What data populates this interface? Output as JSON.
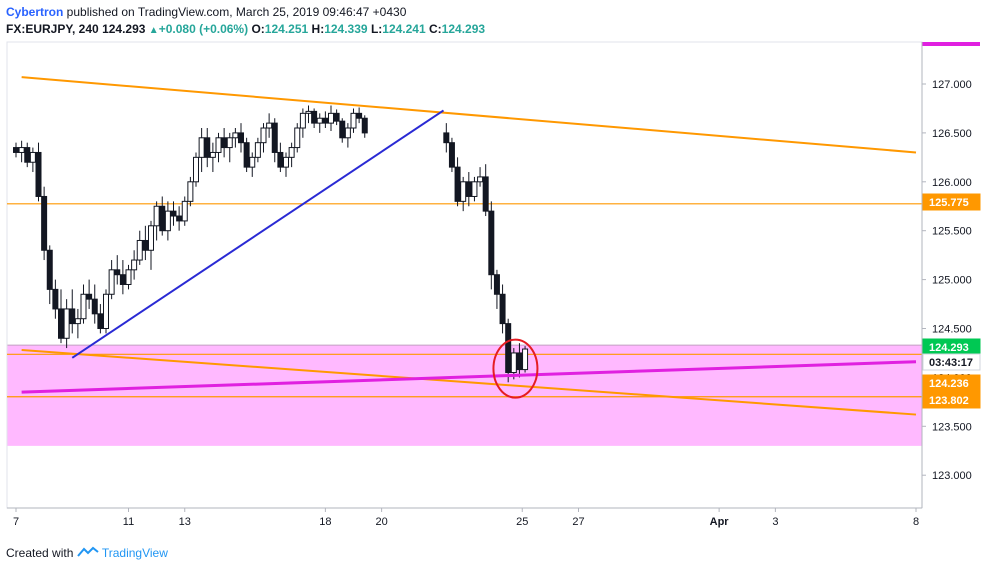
{
  "header": {
    "author": "Cybertron",
    "published_text": " published on TradingView.com, March 25, 2019 09:46:47 +0430"
  },
  "symbol_line": {
    "symbol": "FX:EURJPY, 240",
    "last": "124.293",
    "change": "+0.080 (+0.06%)",
    "o_label": "O:",
    "o": "124.251",
    "h_label": "H:",
    "h": "124.339",
    "l_label": "L:",
    "l": "124.241",
    "c_label": "C:",
    "c": "124.293"
  },
  "footer": {
    "created_with": "Created with",
    "brand": "TradingView"
  },
  "chart_data": {
    "type": "candlestick",
    "ylim": [
      122.7,
      127.5
    ],
    "y_ticks": [
      "127.000",
      "126.500",
      "126.000",
      "125.500",
      "125.000",
      "124.500",
      "124.000",
      "123.500",
      "123.000"
    ],
    "y_tick_values": [
      127.0,
      126.5,
      126.0,
      125.5,
      125.0,
      124.5,
      124.0,
      123.5,
      123.0
    ],
    "x_ticks": [
      {
        "label": "7",
        "day": 7
      },
      {
        "label": "11",
        "day": 11
      },
      {
        "label": "13",
        "day": 13
      },
      {
        "label": "18",
        "day": 18
      },
      {
        "label": "20",
        "day": 20
      },
      {
        "label": "25",
        "day": 25
      },
      {
        "label": "27",
        "day": 27
      },
      {
        "label": "Apr",
        "day": 32
      },
      {
        "label": "3",
        "day": 34
      },
      {
        "label": "8",
        "day": 39
      }
    ],
    "price_tags": [
      {
        "label": "124.293",
        "value": 124.293,
        "color": "#00c853",
        "text_color": "#ffffff"
      },
      {
        "label": "03:43:17",
        "value": 124.163,
        "color": "#ffffff",
        "text_color": "#131722"
      },
      {
        "label": "124.236",
        "value": 124.0,
        "color": "#ff9800",
        "text_color": "#ffffff"
      },
      {
        "label": "123.802",
        "value": 123.802,
        "color": "#ff9800",
        "text_color": "#ffffff"
      },
      {
        "label": "125.775",
        "value": 125.775,
        "color": "#ff9800",
        "text_color": "#ffffff"
      }
    ],
    "horizontal_lines": [
      {
        "value": 125.775,
        "color": "#ff9800"
      },
      {
        "value": 124.236,
        "color": "#ff9800"
      },
      {
        "value": 123.802,
        "color": "#ff9800"
      }
    ],
    "zone": {
      "from": 123.3,
      "to": 124.33,
      "color": "#ff80ff"
    },
    "trendlines": [
      {
        "from": [
          7.2,
          127.07
        ],
        "to": [
          39,
          126.3
        ],
        "color": "#ff9800"
      },
      {
        "from": [
          7.2,
          124.28
        ],
        "to": [
          39,
          123.62
        ],
        "color": "#ff9800"
      },
      {
        "from": [
          9.0,
          124.2
        ],
        "to": [
          22.2,
          126.73
        ],
        "color": "#2a2ad4"
      },
      {
        "from": [
          7.2,
          123.85
        ],
        "to": [
          39,
          124.16
        ],
        "color": "#e020e0"
      }
    ],
    "circle": {
      "day": 24.9,
      "value": 124.09,
      "color": "#e51c23"
    },
    "candles": [
      [
        7.0,
        126.35,
        126.4,
        126.25,
        126.3
      ],
      [
        7.2,
        126.3,
        126.42,
        126.2,
        126.35
      ],
      [
        7.4,
        126.35,
        126.4,
        126.15,
        126.2
      ],
      [
        7.6,
        126.2,
        126.35,
        126.1,
        126.3
      ],
      [
        7.8,
        126.3,
        126.4,
        125.8,
        125.85
      ],
      [
        8.0,
        125.85,
        125.95,
        125.2,
        125.3
      ],
      [
        8.2,
        125.3,
        125.35,
        124.75,
        124.9
      ],
      [
        8.4,
        124.9,
        125.0,
        124.6,
        124.7
      ],
      [
        8.6,
        124.7,
        124.9,
        124.35,
        124.4
      ],
      [
        8.8,
        124.4,
        124.8,
        124.3,
        124.7
      ],
      [
        9.0,
        124.7,
        124.9,
        124.45,
        124.55
      ],
      [
        9.2,
        124.55,
        124.7,
        124.4,
        124.6
      ],
      [
        9.4,
        124.6,
        124.95,
        124.55,
        124.85
      ],
      [
        9.6,
        124.85,
        125.0,
        124.7,
        124.8
      ],
      [
        9.8,
        124.8,
        124.95,
        124.55,
        124.65
      ],
      [
        10.0,
        124.65,
        124.75,
        124.45,
        124.5
      ],
      [
        10.2,
        124.5,
        124.9,
        124.45,
        124.85
      ],
      [
        10.4,
        124.85,
        125.2,
        124.8,
        125.1
      ],
      [
        10.6,
        125.1,
        125.25,
        124.95,
        125.05
      ],
      [
        10.8,
        125.05,
        125.2,
        124.85,
        124.95
      ],
      [
        11.0,
        124.95,
        125.15,
        124.9,
        125.1
      ],
      [
        11.2,
        125.1,
        125.3,
        125.0,
        125.2
      ],
      [
        11.4,
        125.2,
        125.5,
        125.15,
        125.4
      ],
      [
        11.6,
        125.4,
        125.55,
        125.2,
        125.3
      ],
      [
        11.8,
        125.3,
        125.6,
        125.1,
        125.55
      ],
      [
        12.0,
        125.55,
        125.8,
        125.4,
        125.75
      ],
      [
        12.2,
        125.75,
        125.85,
        125.45,
        125.5
      ],
      [
        12.4,
        125.5,
        125.8,
        125.4,
        125.7
      ],
      [
        12.6,
        125.7,
        125.8,
        125.55,
        125.65
      ],
      [
        12.8,
        125.65,
        125.75,
        125.5,
        125.6
      ],
      [
        13.0,
        125.6,
        125.85,
        125.55,
        125.8
      ],
      [
        13.2,
        125.8,
        126.05,
        125.75,
        126.0
      ],
      [
        13.4,
        126.0,
        126.3,
        125.95,
        126.25
      ],
      [
        13.6,
        126.25,
        126.55,
        126.1,
        126.45
      ],
      [
        13.8,
        126.45,
        126.55,
        126.15,
        126.25
      ],
      [
        14.0,
        126.25,
        126.4,
        126.1,
        126.3
      ],
      [
        14.2,
        126.3,
        126.5,
        126.2,
        126.45
      ],
      [
        14.4,
        126.45,
        126.55,
        126.25,
        126.35
      ],
      [
        14.6,
        126.35,
        126.5,
        126.2,
        126.45
      ],
      [
        14.8,
        126.45,
        126.55,
        126.35,
        126.5
      ],
      [
        15.0,
        126.5,
        126.6,
        126.3,
        126.4
      ],
      [
        15.2,
        126.4,
        126.45,
        126.1,
        126.15
      ],
      [
        15.4,
        126.15,
        126.3,
        126.05,
        126.25
      ],
      [
        15.6,
        126.25,
        126.45,
        126.2,
        126.4
      ],
      [
        15.8,
        126.4,
        126.6,
        126.3,
        126.55
      ],
      [
        16.0,
        126.55,
        126.7,
        126.45,
        126.6
      ],
      [
        16.2,
        126.6,
        126.65,
        126.2,
        126.3
      ],
      [
        16.4,
        126.3,
        126.4,
        126.1,
        126.15
      ],
      [
        16.6,
        126.15,
        126.3,
        126.05,
        126.25
      ],
      [
        16.8,
        126.25,
        126.4,
        126.15,
        126.35
      ],
      [
        17.0,
        126.35,
        126.6,
        126.3,
        126.55
      ],
      [
        17.2,
        126.55,
        126.75,
        126.45,
        126.7
      ],
      [
        17.4,
        126.7,
        126.78,
        126.6,
        126.72
      ],
      [
        17.6,
        126.72,
        126.75,
        126.55,
        126.6
      ],
      [
        17.8,
        126.6,
        126.7,
        126.5,
        126.65
      ],
      [
        18.0,
        126.65,
        126.72,
        126.55,
        126.6
      ],
      [
        18.2,
        126.6,
        126.78,
        126.52,
        126.7
      ],
      [
        18.4,
        126.7,
        126.74,
        126.58,
        126.62
      ],
      [
        18.6,
        126.62,
        126.65,
        126.4,
        126.45
      ],
      [
        18.8,
        126.45,
        126.6,
        126.35,
        126.55
      ],
      [
        19.0,
        126.55,
        126.75,
        126.5,
        126.7
      ],
      [
        19.2,
        126.7,
        126.76,
        126.6,
        126.65
      ],
      [
        19.4,
        126.65,
        126.68,
        126.45,
        126.5
      ],
      [
        22.3,
        126.5,
        126.6,
        126.3,
        126.4
      ],
      [
        22.5,
        126.4,
        126.45,
        126.1,
        126.15
      ],
      [
        22.7,
        126.15,
        126.25,
        125.75,
        125.8
      ],
      [
        22.9,
        125.8,
        126.05,
        125.7,
        126.0
      ],
      [
        23.1,
        126.0,
        126.1,
        125.75,
        125.85
      ],
      [
        23.3,
        125.85,
        126.05,
        125.8,
        126.0
      ],
      [
        23.5,
        126.0,
        126.15,
        125.95,
        126.05
      ],
      [
        23.7,
        126.05,
        126.18,
        125.65,
        125.7
      ],
      [
        23.9,
        125.7,
        125.8,
        124.9,
        125.05
      ],
      [
        24.1,
        125.05,
        125.1,
        124.7,
        124.85
      ],
      [
        24.3,
        124.85,
        124.95,
        124.45,
        124.55
      ],
      [
        24.5,
        124.55,
        124.6,
        123.95,
        124.05
      ],
      [
        24.7,
        124.05,
        124.3,
        123.98,
        124.25
      ],
      [
        24.9,
        124.25,
        124.35,
        124.0,
        124.08
      ],
      [
        25.1,
        124.08,
        124.32,
        124.05,
        124.29
      ]
    ]
  }
}
